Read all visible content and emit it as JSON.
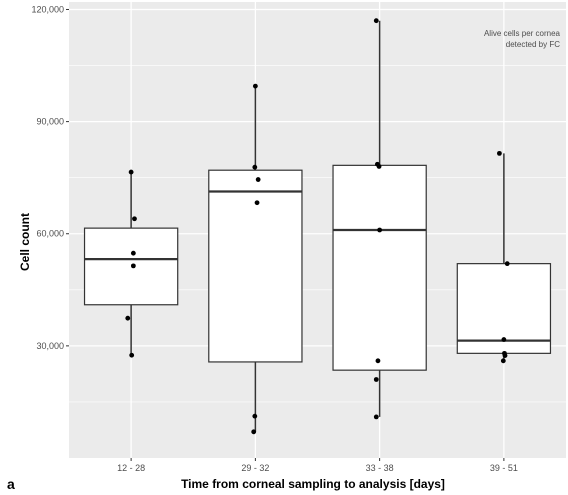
{
  "chart_data": {
    "type": "box",
    "title": "",
    "xlabel": "Time from corneal sampling to analysis [days]",
    "ylabel": "Cell count",
    "annotation_lines": [
      "Alive cells per cornea",
      "detected by FC"
    ],
    "panel_label": "a",
    "ylim": [
      0,
      122000
    ],
    "yticks": [
      30000,
      60000,
      90000,
      120000
    ],
    "ytick_labels": [
      "30,000",
      "60,000",
      "90,000",
      "120,000"
    ],
    "grid": true,
    "legend": "none",
    "categories": [
      "12 - 28",
      "29 - 32",
      "33 - 38",
      "39 - 51"
    ],
    "boxes": [
      {
        "category": "12 - 28",
        "min": 27500,
        "q1": 41000,
        "median": 53200,
        "q3": 61500,
        "max": 76500
      },
      {
        "category": "29 - 32",
        "min": 7000,
        "q1": 25700,
        "median": 71300,
        "q3": 77000,
        "max": 99500
      },
      {
        "category": "33 - 38",
        "min": 11000,
        "q1": 23500,
        "median": 61000,
        "q3": 78300,
        "max": 117000
      },
      {
        "category": "39 - 51",
        "min": 26000,
        "q1": 28000,
        "median": 31400,
        "q3": 52000,
        "max": 81500
      }
    ],
    "points": [
      {
        "category": "12 - 28",
        "values": [
          76500,
          64000,
          54800,
          51400,
          37400,
          27500
        ],
        "jitter": [
          0,
          0.3,
          0.2,
          0.2,
          -0.3,
          0.05
        ]
      },
      {
        "category": "29 - 32",
        "values": [
          99500,
          77800,
          74500,
          68300,
          11200,
          7000
        ],
        "jitter": [
          0,
          -0.05,
          0.25,
          0.15,
          -0.05,
          -0.15
        ]
      },
      {
        "category": "33 - 38",
        "values": [
          117000,
          78600,
          78000,
          61000,
          26000,
          21000,
          11000
        ],
        "jitter": [
          -0.3,
          -0.2,
          -0.05,
          0,
          -0.15,
          -0.3,
          -0.3
        ]
      },
      {
        "category": "39 - 51",
        "values": [
          81500,
          52000,
          31700,
          28000,
          27400,
          26000
        ],
        "jitter": [
          -0.4,
          0.3,
          0,
          0.05,
          0.1,
          -0.05
        ]
      }
    ],
    "colors": {
      "panel_bg": "#ebebeb",
      "grid": "#ffffff",
      "box_fill": "#ffffff",
      "box_stroke": "#333333",
      "point": "#000000"
    }
  }
}
